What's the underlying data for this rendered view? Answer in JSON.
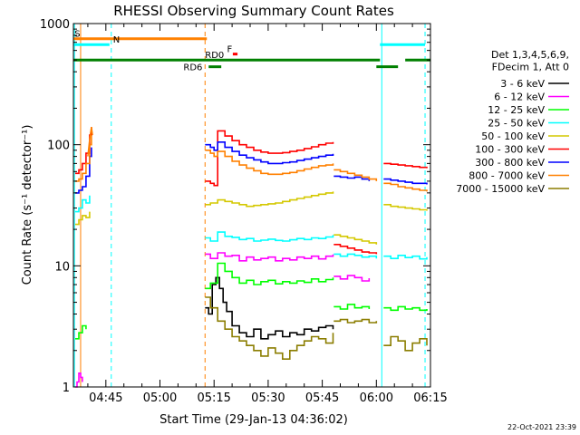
{
  "chart_data": {
    "type": "line",
    "title": "RHESSI Observing Summary Count Rates",
    "xlabel": "Start Time (29-Jan-13 04:36:02)",
    "ylabel": "Count Rate (s⁻¹ detector⁻¹)",
    "y_scale": "log",
    "ylim": [
      1,
      1000
    ],
    "xlim_minutes": [
      36.0,
      135.0
    ],
    "x_ticks": [
      {
        "minute": 45,
        "label": "04:45"
      },
      {
        "minute": 60,
        "label": "05:00"
      },
      {
        "minute": 75,
        "label": "05:15"
      },
      {
        "minute": 90,
        "label": "05:30"
      },
      {
        "minute": 105,
        "label": "05:45"
      },
      {
        "minute": 120,
        "label": "06:00"
      },
      {
        "minute": 135,
        "label": "06:15"
      }
    ],
    "y_ticks": [
      {
        "value": 1,
        "label": "1"
      },
      {
        "value": 10,
        "label": "10"
      },
      {
        "value": 100,
        "label": "100"
      },
      {
        "value": 1000,
        "label": "1000"
      }
    ],
    "legend": {
      "title_lines": [
        "Det 1,3,4,5,6,9,",
        "FDecim 1, Att 0"
      ],
      "entries": [
        {
          "label": "3 - 6 keV",
          "color": "#000000"
        },
        {
          "label": "6 - 12 keV",
          "color": "#ff00ff"
        },
        {
          "label": "12 - 25 keV",
          "color": "#00ff00"
        },
        {
          "label": "25 - 50 keV",
          "color": "#00ffff"
        },
        {
          "label": "50 - 100 keV",
          "color": "#d4c800"
        },
        {
          "label": "100 - 300 keV",
          "color": "#ff0000"
        },
        {
          "label": "300 - 800 keV",
          "color": "#0000ff"
        },
        {
          "label": "800 - 7000 keV",
          "color": "#ff8000"
        },
        {
          "label": "7000 - 15000 keV",
          "color": "#8b7d00"
        }
      ]
    },
    "series": [
      {
        "name": "3 - 6 keV",
        "color": "#000000",
        "segments": [
          {
            "x": [
              72.5,
              73.5,
              74.5,
              75.5,
              76.5,
              77.5,
              78.5,
              80,
              82,
              84,
              86,
              88,
              90,
              92,
              94,
              96,
              98,
              100,
              102,
              104,
              106,
              108
            ],
            "y": [
              4.5,
              4.0,
              7.0,
              8.0,
              6.5,
              5.0,
              4.2,
              3.2,
              2.8,
              2.6,
              3.0,
              2.5,
              2.7,
              2.9,
              2.6,
              2.8,
              2.7,
              3.0,
              2.9,
              3.1,
              3.2,
              3.0
            ]
          }
        ]
      },
      {
        "name": "6 - 12 keV",
        "color": "#ff00ff",
        "segments": [
          {
            "x": [
              36.5,
              37.0,
              37.5,
              38.0,
              38.5
            ],
            "y": [
              1.0,
              1.1,
              1.3,
              1.2,
              1.1
            ]
          },
          {
            "x": [
              72.5,
              74,
              76,
              78,
              80,
              82,
              84,
              86,
              88,
              90,
              92,
              94,
              96,
              98,
              100,
              102,
              104,
              106,
              108
            ],
            "y": [
              12.5,
              11.5,
              12.8,
              12.0,
              12.2,
              11.0,
              11.8,
              11.2,
              11.5,
              11.8,
              11.0,
              11.5,
              11.2,
              11.8,
              11.5,
              12.0,
              11.4,
              12.0,
              12.4
            ]
          },
          {
            "x": [
              108.2,
              110,
              112,
              114,
              116,
              118
            ],
            "y": [
              8.2,
              7.8,
              8.3,
              8.0,
              7.5,
              7.9
            ]
          }
        ]
      },
      {
        "name": "12 - 25 keV",
        "color": "#00ff00",
        "segments": [
          {
            "x": [
              36.5,
              37.5,
              38.5,
              39.5
            ],
            "y": [
              2.5,
              2.8,
              3.2,
              3.0
            ]
          },
          {
            "x": [
              72.5,
              74,
              76,
              78,
              80,
              82,
              84,
              86,
              88,
              90,
              92,
              94,
              96,
              98,
              100,
              102,
              104,
              106,
              108
            ],
            "y": [
              6.5,
              7.2,
              10.5,
              9.0,
              8.0,
              7.2,
              7.6,
              7.0,
              7.4,
              7.6,
              7.1,
              7.4,
              7.2,
              7.5,
              7.3,
              7.8,
              7.4,
              7.7,
              8.0
            ]
          },
          {
            "x": [
              108.2,
              110,
              112,
              114,
              116,
              118
            ],
            "y": [
              4.6,
              4.4,
              4.8,
              4.5,
              4.6,
              4.4
            ]
          },
          {
            "x": [
              122,
              124,
              126,
              128,
              130,
              132,
              134
            ],
            "y": [
              4.5,
              4.3,
              4.6,
              4.4,
              4.5,
              4.3,
              4.4
            ]
          }
        ]
      },
      {
        "name": "25 - 50 keV",
        "color": "#00ffff",
        "segments": [
          {
            "x": [
              36.5,
              37.5,
              38.5,
              39.5,
              40.5
            ],
            "y": [
              28,
              30,
              35,
              33,
              38
            ]
          },
          {
            "x": [
              72.5,
              74,
              76,
              78,
              80,
              82,
              84,
              86,
              88,
              90,
              92,
              94,
              96,
              98,
              100,
              102,
              104,
              106,
              108
            ],
            "y": [
              17,
              16,
              19,
              17.5,
              17.2,
              16.5,
              16.8,
              16.0,
              16.3,
              16.6,
              16.2,
              16.0,
              16.4,
              16.8,
              16.5,
              17.0,
              16.8,
              17.3,
              18
            ]
          },
          {
            "x": [
              108.2,
              110,
              112,
              114,
              116,
              118,
              120
            ],
            "y": [
              12.5,
              12.0,
              12.5,
              12.2,
              11.8,
              12.0,
              11.5
            ]
          },
          {
            "x": [
              122,
              124,
              126,
              128,
              130,
              132,
              134
            ],
            "y": [
              12.0,
              11.5,
              12.2,
              11.7,
              12.0,
              11.4,
              11.8
            ]
          }
        ]
      },
      {
        "name": "50 - 100 keV",
        "color": "#d4c800",
        "segments": [
          {
            "x": [
              36.5,
              37.5,
              38.5,
              39.5,
              40.5
            ],
            "y": [
              22,
              24,
              26,
              25,
              28
            ]
          },
          {
            "x": [
              72.5,
              74,
              76,
              78,
              80,
              82,
              84,
              86,
              88,
              90,
              92,
              94,
              96,
              98,
              100,
              102,
              104,
              106,
              108
            ],
            "y": [
              32,
              33,
              35,
              34,
              33,
              32,
              31,
              31.5,
              32,
              32.5,
              33,
              34,
              35,
              36,
              37,
              38,
              39,
              40,
              41
            ]
          },
          {
            "x": [
              108.2,
              110,
              112,
              114,
              116,
              118,
              120
            ],
            "y": [
              18,
              17.5,
              17,
              16.5,
              16,
              15.5,
              15
            ]
          },
          {
            "x": [
              122,
              124,
              126,
              128,
              130,
              132,
              134
            ],
            "y": [
              32,
              31,
              30.5,
              30,
              29.5,
              29,
              28.5
            ]
          }
        ]
      },
      {
        "name": "100 - 300 keV",
        "color": "#ff0000",
        "segments": [
          {
            "x": [
              36.5,
              37.5,
              38.5,
              39.5,
              40.5,
              41.0
            ],
            "y": [
              58,
              62,
              70,
              85,
              120,
              140
            ]
          },
          {
            "x": [
              72.5,
              74,
              75,
              76,
              78,
              80,
              82,
              84,
              86,
              88,
              90,
              92,
              94,
              96,
              98,
              100,
              102,
              104,
              106,
              108
            ],
            "y": [
              50,
              48,
              46,
              130,
              118,
              108,
              100,
              95,
              90,
              87,
              85,
              85,
              86,
              88,
              90,
              93,
              96,
              100,
              103,
              105
            ]
          },
          {
            "x": [
              108.2,
              110,
              112,
              114,
              116,
              118,
              120
            ],
            "y": [
              15,
              14.5,
              14,
              13.5,
              13,
              12.8,
              12.5
            ]
          },
          {
            "x": [
              122,
              124,
              126,
              128,
              130,
              132,
              134
            ],
            "y": [
              70,
              69,
              68,
              67,
              66,
              65,
              64
            ]
          }
        ]
      },
      {
        "name": "300 - 800 keV",
        "color": "#0000ff",
        "segments": [
          {
            "x": [
              36.5,
              37.5,
              38.5,
              39.5,
              40.5,
              41.0
            ],
            "y": [
              40,
              42,
              45,
              55,
              80,
              95
            ]
          },
          {
            "x": [
              72.5,
              74,
              75,
              76,
              78,
              80,
              82,
              84,
              86,
              88,
              90,
              92,
              94,
              96,
              98,
              100,
              102,
              104,
              106,
              108
            ],
            "y": [
              100,
              95,
              90,
              105,
              95,
              88,
              82,
              78,
              75,
              72,
              70,
              70,
              71,
              72,
              74,
              76,
              78,
              80,
              82,
              84
            ]
          },
          {
            "x": [
              108.2,
              110,
              112,
              114,
              116,
              118
            ],
            "y": [
              55,
              54,
              53,
              54,
              52,
              50
            ]
          },
          {
            "x": [
              122,
              124,
              126,
              128,
              130,
              132,
              134
            ],
            "y": [
              52,
              51,
              50,
              49,
              48,
              48,
              47
            ]
          }
        ]
      },
      {
        "name": "800 - 7000 keV",
        "color": "#ff8000",
        "segments": [
          {
            "x": [
              36.5,
              37.5,
              38.5,
              39.5,
              40.5,
              41.0
            ],
            "y": [
              50,
              52,
              58,
              70,
              100,
              120
            ]
          },
          {
            "x": [
              72.5,
              74,
              75,
              76,
              78,
              80,
              82,
              84,
              86,
              88,
              90,
              92,
              94,
              96,
              98,
              100,
              102,
              104,
              106,
              108
            ],
            "y": [
              90,
              85,
              80,
              88,
              80,
              73,
              68,
              64,
              61,
              58,
              57,
              57,
              58,
              59,
              61,
              63,
              65,
              67,
              68,
              70
            ]
          },
          {
            "x": [
              108.2,
              110,
              112,
              114,
              116,
              118,
              120
            ],
            "y": [
              62,
              60,
              58,
              56,
              54,
              52,
              50
            ]
          },
          {
            "x": [
              122,
              124,
              126,
              128,
              130,
              132,
              134
            ],
            "y": [
              48,
              47,
              45,
              44,
              43,
              42,
              41
            ]
          }
        ]
      },
      {
        "name": "7000 - 15000 keV",
        "color": "#8b7d00",
        "segments": [
          {
            "x": [
              72.5,
              74,
              76,
              78,
              80,
              82,
              84,
              86,
              88,
              90,
              92,
              94,
              96,
              98,
              100,
              102,
              104,
              106,
              108
            ],
            "y": [
              5.5,
              4.5,
              3.5,
              3.0,
              2.6,
              2.4,
              2.2,
              2.0,
              1.8,
              2.1,
              1.9,
              1.7,
              2.0,
              2.2,
              2.4,
              2.6,
              2.5,
              2.3,
              2.8
            ]
          },
          {
            "x": [
              108.2,
              110,
              112,
              114,
              116,
              118,
              120
            ],
            "y": [
              3.5,
              3.6,
              3.4,
              3.5,
              3.6,
              3.4,
              3.5
            ]
          },
          {
            "x": [
              122,
              124,
              126,
              128,
              130,
              132,
              134
            ],
            "y": [
              2.2,
              2.6,
              2.4,
              2.0,
              2.3,
              2.5,
              2.2
            ]
          }
        ]
      }
    ],
    "spike": {
      "x": [
        40.0,
        40.5,
        41.0,
        41.3
      ],
      "y": [
        80,
        110,
        140,
        120
      ],
      "color": "#ff8000"
    },
    "obs_bars": [
      {
        "label": "S",
        "color": "#ff8000",
        "x_start": 36.0,
        "x_end": 73.0,
        "y_value": 750,
        "label_at": 36.3
      },
      {
        "label": "N",
        "color": "#00ffff",
        "x_start": 36.0,
        "x_end": 46.0,
        "y_value": 670,
        "label_at": 47.0
      },
      {
        "label": "N",
        "color": "#00ffff",
        "x_start": 121.0,
        "x_end": 133.5,
        "y_value": 670,
        "label_at": null
      },
      {
        "label": "RD0",
        "color": "#008000",
        "x_start": 36.0,
        "x_end": 121.0,
        "y_value": 500,
        "label_at": 72.5
      },
      {
        "label": "RD6",
        "color": "#008000",
        "x_start": 73.5,
        "x_end": 77.0,
        "y_value": 440,
        "label_at": 66.5
      },
      {
        "label": "",
        "color": "#008000",
        "x_start": 120.0,
        "x_end": 126.0,
        "y_value": 440,
        "label_at": null
      },
      {
        "label": "",
        "color": "#008000",
        "x_start": 128.0,
        "x_end": 135.0,
        "y_value": 500,
        "label_at": null
      },
      {
        "label": "F",
        "color": "#ff0000",
        "x_start": 80.2,
        "x_end": 81.5,
        "y_value": 560,
        "label_at": 78.6
      }
    ],
    "v_lines": [
      {
        "x": 38.0,
        "color": "#ff8000",
        "style": "solid"
      },
      {
        "x": 36.3,
        "color": "#00ffff",
        "style": "solid"
      },
      {
        "x": 46.5,
        "color": "#00ffff",
        "style": "dashed"
      },
      {
        "x": 72.5,
        "color": "#ff8000",
        "style": "dashed"
      },
      {
        "x": 121.5,
        "color": "#00ffff",
        "style": "solid"
      },
      {
        "x": 133.5,
        "color": "#00ffff",
        "style": "dashed"
      }
    ]
  },
  "footer": {
    "timestamp": "22-Oct-2021 23:39"
  }
}
